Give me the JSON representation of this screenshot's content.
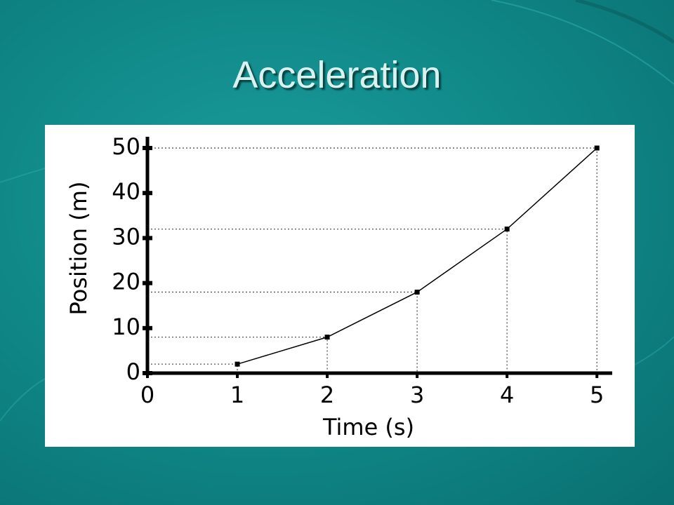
{
  "title": "Acceleration",
  "chart_data": {
    "type": "line",
    "x_label": "Time (s)",
    "y_label": "Position (m)",
    "x": [
      1,
      2,
      3,
      4,
      5
    ],
    "series": [
      {
        "color": "#000000",
        "values": [
          2,
          8,
          18,
          32,
          50
        ]
      }
    ],
    "xlim": [
      0,
      5.17
    ],
    "ylim": [
      0,
      52.5
    ],
    "xticks": [
      0,
      1,
      2,
      3,
      4,
      5
    ],
    "yticks": [
      0,
      10,
      20,
      30,
      40,
      50
    ],
    "guides": true
  }
}
